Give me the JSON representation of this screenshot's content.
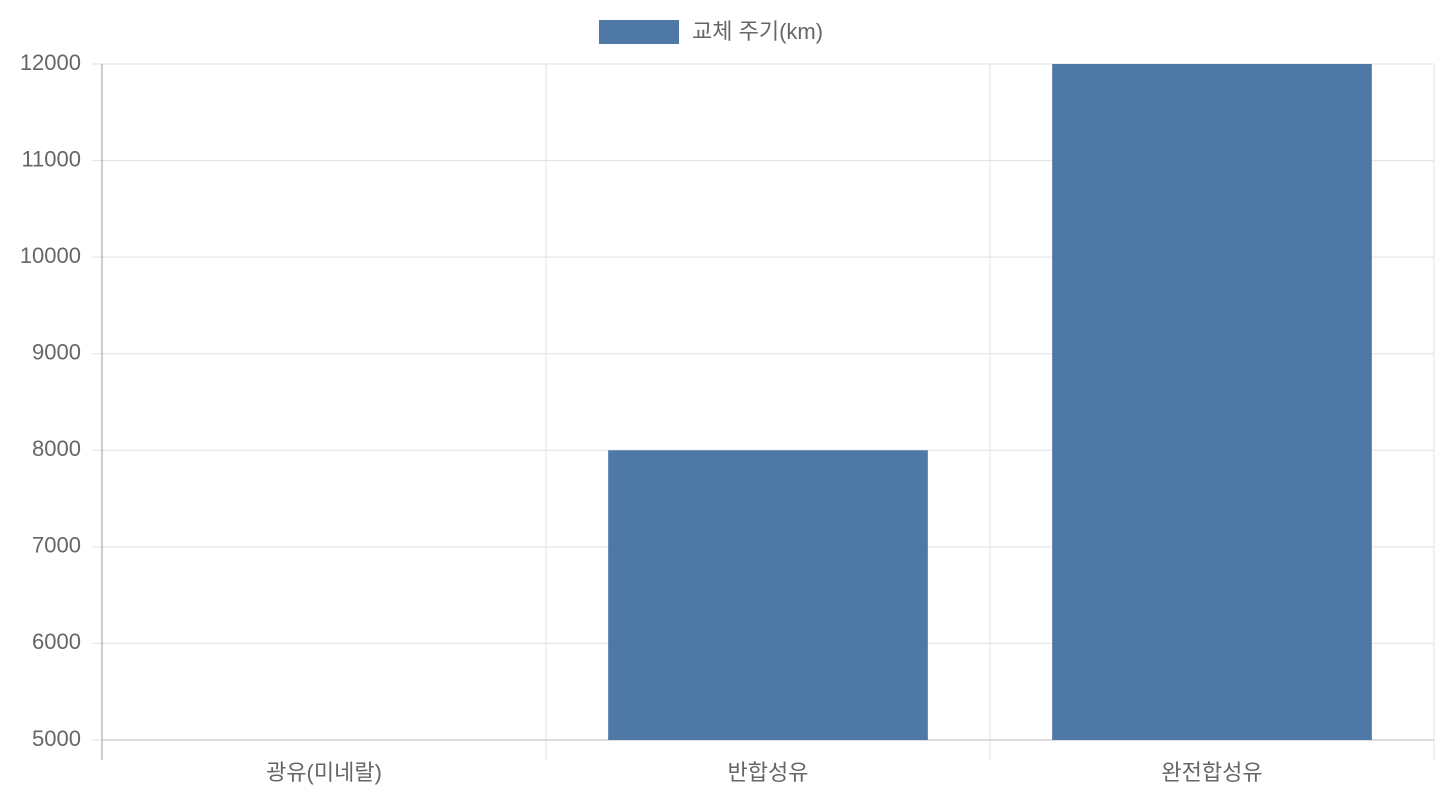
{
  "chart_data": {
    "type": "bar",
    "categories": [
      "광유(미네랄)",
      "반합성유",
      "완전합성유"
    ],
    "series": [
      {
        "name": "교체 주기(km)",
        "color": "#4e79a7",
        "values": [
          5000,
          8000,
          12000
        ]
      }
    ],
    "ylim": [
      5000,
      12000
    ],
    "yticks": [
      5000,
      6000,
      7000,
      8000,
      9000,
      10000,
      11000,
      12000
    ],
    "grid": true,
    "legend": "top"
  }
}
